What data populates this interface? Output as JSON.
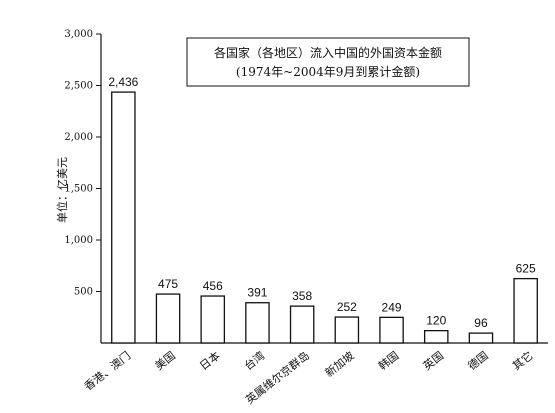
{
  "chart_data": {
    "type": "bar",
    "title": "各国家（各地区）流入中国的外国资本金额",
    "subtitle": "(1974年~2004年9月到累计金额)",
    "ylabel": "单位：亿美元",
    "ylim": [
      0,
      3000
    ],
    "yticks": [
      500,
      1000,
      1500,
      2000,
      2500,
      3000
    ],
    "ytick_labels": [
      "500",
      "1,000",
      "1,500",
      "2,000",
      "2,500",
      "3,000"
    ],
    "categories": [
      "香港、澳门",
      "美国",
      "日本",
      "台湾",
      "英属维尔京群岛",
      "新加坡",
      "韩国",
      "英国",
      "德国",
      "其它"
    ],
    "values": [
      2436,
      475,
      456,
      391,
      358,
      252,
      249,
      120,
      96,
      625
    ],
    "value_labels": [
      "2,436",
      "475",
      "456",
      "391",
      "358",
      "252",
      "249",
      "120",
      "96",
      "625"
    ],
    "grid": false,
    "bar_fill": "#ffffff",
    "bar_stroke": "#111111"
  }
}
